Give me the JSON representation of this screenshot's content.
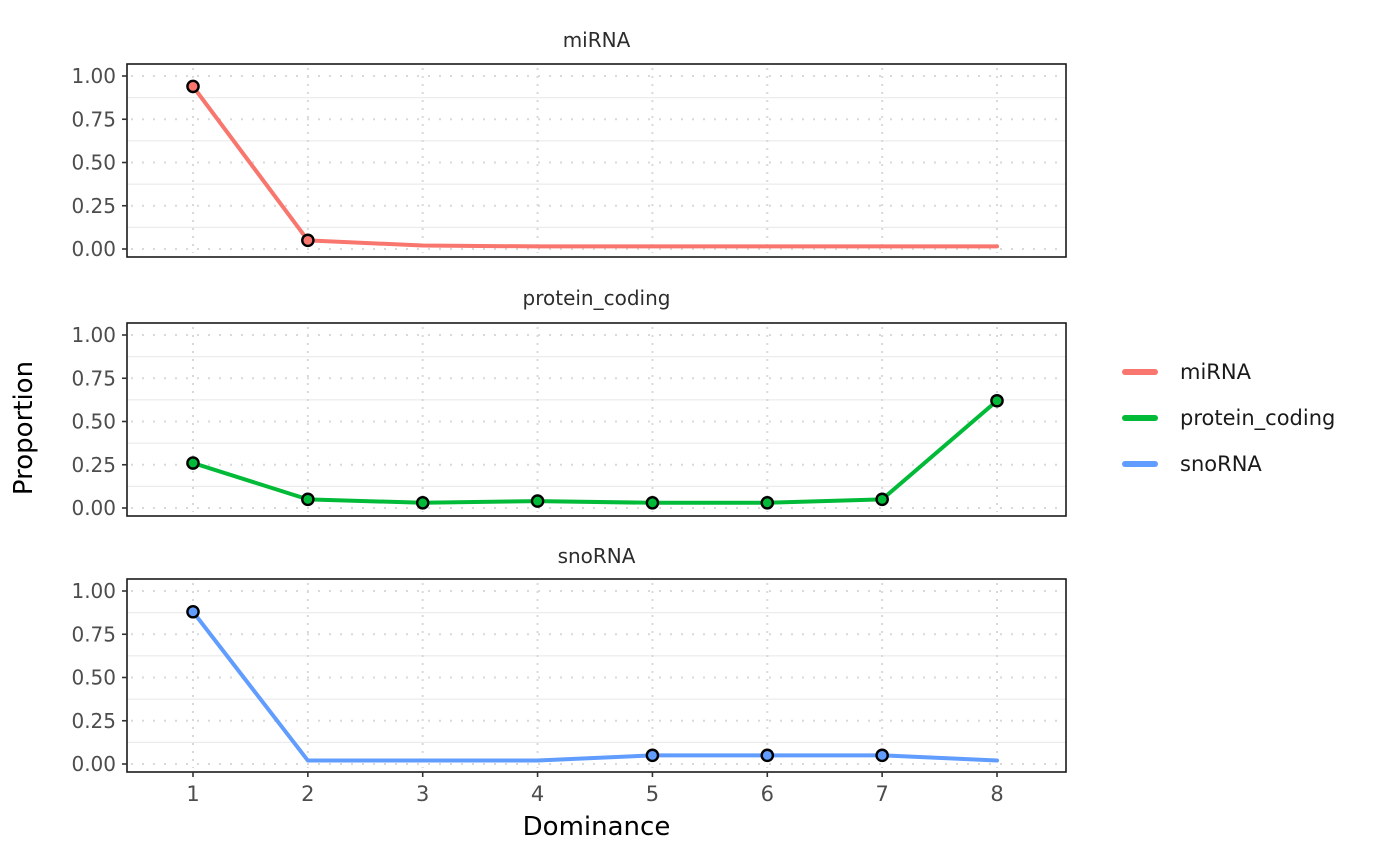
{
  "chart_data": {
    "type": "line",
    "faceted": true,
    "xlabel": "Dominance",
    "ylabel": "Proportion",
    "x": [
      1,
      2,
      3,
      4,
      5,
      6,
      7,
      8
    ],
    "x_tick_labels": [
      "1",
      "2",
      "3",
      "4",
      "5",
      "6",
      "7",
      "8"
    ],
    "y_tick_values": [
      0,
      0.25,
      0.5,
      0.75,
      1
    ],
    "y_tick_labels": [
      "0.00",
      "0.25",
      "0.50",
      "0.75",
      "1.00"
    ],
    "y_minor_values": [
      0.125,
      0.375,
      0.625,
      0.875
    ],
    "ylim": [
      0,
      1
    ],
    "grid": {
      "major_style": "dotted",
      "minor_style": "solid",
      "major_color": "#d9d9d9",
      "minor_color": "#ececec"
    },
    "legend": {
      "position": "right",
      "entries": [
        "miRNA",
        "protein_coding",
        "snoRNA"
      ]
    },
    "facets": [
      {
        "title": "miRNA",
        "color": "#F8766D",
        "values": [
          0.94,
          0.05,
          0.02,
          0.015,
          0.015,
          0.015,
          0.015,
          0.015
        ],
        "marker_x": [
          1,
          2
        ]
      },
      {
        "title": "protein_coding",
        "color": "#00BA38",
        "values": [
          0.26,
          0.05,
          0.03,
          0.04,
          0.03,
          0.03,
          0.05,
          0.62
        ],
        "marker_x": [
          1,
          2,
          3,
          4,
          5,
          6,
          7,
          8
        ]
      },
      {
        "title": "snoRNA",
        "color": "#619CFF",
        "values": [
          0.88,
          0.02,
          0.02,
          0.02,
          0.05,
          0.05,
          0.05,
          0.02
        ],
        "marker_x": [
          1,
          5,
          6,
          7
        ]
      }
    ],
    "style": {
      "line_width": 4,
      "marker_outline": "#000000",
      "panel_border": "#1a1a1a",
      "tick_color": "#333333",
      "tick_label_color": "#4d4d4d",
      "panel_title_color": "#2d2d2d",
      "axis_title_color": "#000000"
    }
  }
}
